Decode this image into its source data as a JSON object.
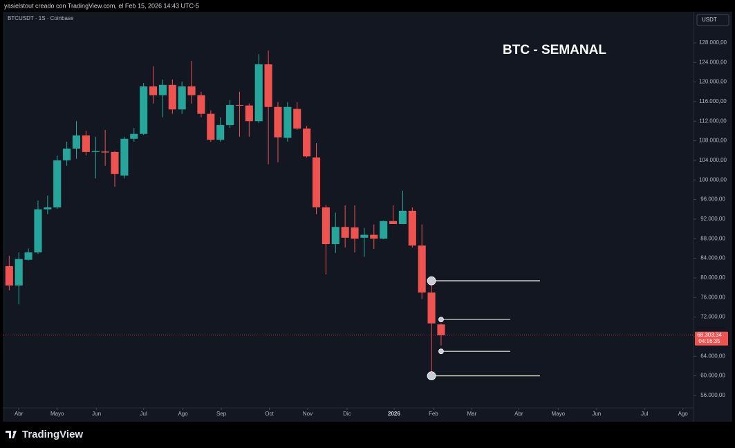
{
  "header": "yasielstout creado con TradingView.com, el Feb 15, 2026 14:43 UTC-5",
  "brand": "TradingView",
  "chart_data": {
    "type": "candlestick",
    "title": "BTC - SEMANAL",
    "symbol": "BTCUSDT · 1S · Coinbase",
    "currency": "USDT",
    "up_color": "#26a69a",
    "down_color": "#ef5350",
    "x": [
      0,
      1,
      2,
      3,
      4,
      5,
      6,
      7,
      8,
      9,
      10,
      11,
      12,
      13,
      14,
      15,
      16,
      17,
      18,
      19,
      20,
      21,
      22,
      23,
      24,
      25,
      26,
      27,
      28,
      29,
      30,
      31,
      32,
      33,
      34,
      35,
      36,
      37,
      38,
      39,
      40,
      41,
      42,
      43,
      44,
      45
    ],
    "open": [
      82400,
      78450,
      83700,
      85200,
      94000,
      94400,
      104000,
      106400,
      109100,
      105700,
      105800,
      105700,
      100900,
      108400,
      109400,
      119100,
      117300,
      119400,
      114400,
      119100,
      117300,
      113500,
      108200,
      111200,
      115300,
      115200,
      112000,
      123600,
      114900,
      108600,
      114500,
      110500,
      104600,
      94400,
      86900,
      90400,
      90300,
      88200,
      88800,
      88000,
      91600,
      91000,
      93700,
      86600,
      77000,
      70500
    ],
    "high": [
      84500,
      85200,
      86000,
      95800,
      96800,
      105000,
      107800,
      112000,
      110000,
      108800,
      110200,
      105900,
      108800,
      110600,
      119800,
      123200,
      120500,
      120500,
      120100,
      124300,
      118000,
      114200,
      112800,
      116300,
      118000,
      115600,
      125700,
      126400,
      115900,
      115900,
      115900,
      111000,
      107500,
      94900,
      93300,
      94800,
      94800,
      90200,
      90900,
      91700,
      94800,
      97800,
      94400,
      90900,
      78900,
      70700
    ],
    "low": [
      77460,
      74600,
      83500,
      84900,
      93000,
      94100,
      102900,
      104300,
      105000,
      100300,
      102900,
      98600,
      100300,
      107800,
      109200,
      115600,
      112800,
      113500,
      113500,
      115600,
      112800,
      107800,
      107800,
      110600,
      108800,
      108800,
      111600,
      103200,
      103600,
      107800,
      110200,
      104600,
      93000,
      80700,
      85100,
      86200,
      85200,
      84300,
      85900,
      87900,
      91000,
      91000,
      86200,
      75700,
      60000,
      66200
    ],
    "close": [
      78450,
      83850,
      85200,
      94000,
      94400,
      104000,
      106400,
      109100,
      105700,
      105900,
      105600,
      101200,
      108400,
      109400,
      119100,
      117300,
      119400,
      114400,
      119100,
      117300,
      113500,
      108200,
      111200,
      115300,
      115200,
      112000,
      123600,
      114900,
      108700,
      114900,
      110500,
      104800,
      94400,
      86900,
      90400,
      88200,
      88000,
      88800,
      88000,
      91600,
      91000,
      93700,
      86600,
      77000,
      70700,
      68303.34
    ],
    "last_price": {
      "value": 68303.34,
      "label": "68.303,34"
    },
    "countdown": "04:16:35",
    "levels": [
      {
        "value": 79400,
        "x": [
          44,
          55.3
        ],
        "color": "#ffffff",
        "marker": "large"
      },
      {
        "value": 71500,
        "x": [
          45,
          52.2
        ],
        "color": "#c8c8c8",
        "marker": "small"
      },
      {
        "value": 65000,
        "x": [
          45,
          52.2
        ],
        "color": "#c8c8c8",
        "marker": "small"
      },
      {
        "value": 60000,
        "x": [
          44,
          55.3
        ],
        "color": "#e6e4c4",
        "marker": "large"
      }
    ],
    "xlim": [
      -0.6,
      71.3
    ],
    "ylim": [
      53450,
      134200
    ],
    "xticks": [
      {
        "value": 1.0,
        "label": "Abr"
      },
      {
        "value": 5.0,
        "label": "Mayo"
      },
      {
        "value": 9.1,
        "label": "Jun"
      },
      {
        "value": 14.0,
        "label": "Jul"
      },
      {
        "value": 18.1,
        "label": "Ago"
      },
      {
        "value": 22.1,
        "label": "Sep"
      },
      {
        "value": 27.1,
        "label": "Oct"
      },
      {
        "value": 31.1,
        "label": "Nov"
      },
      {
        "value": 35.2,
        "label": "Dic"
      },
      {
        "value": 40.1,
        "label": "2026"
      },
      {
        "value": 44.2,
        "label": "Feb"
      },
      {
        "value": 48.2,
        "label": "Mar"
      },
      {
        "value": 53.1,
        "label": "Abr"
      },
      {
        "value": 57.2,
        "label": "Mayo"
      },
      {
        "value": 61.2,
        "label": "Jun"
      },
      {
        "value": 66.2,
        "label": "Jul"
      },
      {
        "value": 70.2,
        "label": "Ago"
      }
    ],
    "yticks": [
      {
        "value": 56000,
        "label": "56.000,00"
      },
      {
        "value": 60000,
        "label": "60.000,00"
      },
      {
        "value": 64000,
        "label": "64.000,00"
      },
      {
        "value": 68000,
        "label": "68.000,00"
      },
      {
        "value": 72000,
        "label": "72.000,00"
      },
      {
        "value": 76000,
        "label": "76.000,00"
      },
      {
        "value": 80000,
        "label": "80.000,00"
      },
      {
        "value": 84000,
        "label": "84.000,00"
      },
      {
        "value": 88000,
        "label": "88.000,00"
      },
      {
        "value": 92000,
        "label": "92.000,00"
      },
      {
        "value": 96000,
        "label": "96.000,00"
      },
      {
        "value": 100000,
        "label": "100.000,00"
      },
      {
        "value": 104000,
        "label": "104.000,00"
      },
      {
        "value": 108000,
        "label": "108.000,00"
      },
      {
        "value": 112000,
        "label": "112.000,00"
      },
      {
        "value": 116000,
        "label": "116.000,00"
      },
      {
        "value": 120000,
        "label": "120.000,00"
      },
      {
        "value": 124000,
        "label": "124.000,00"
      },
      {
        "value": 128000,
        "label": "128.000,00"
      }
    ],
    "grid": false
  }
}
